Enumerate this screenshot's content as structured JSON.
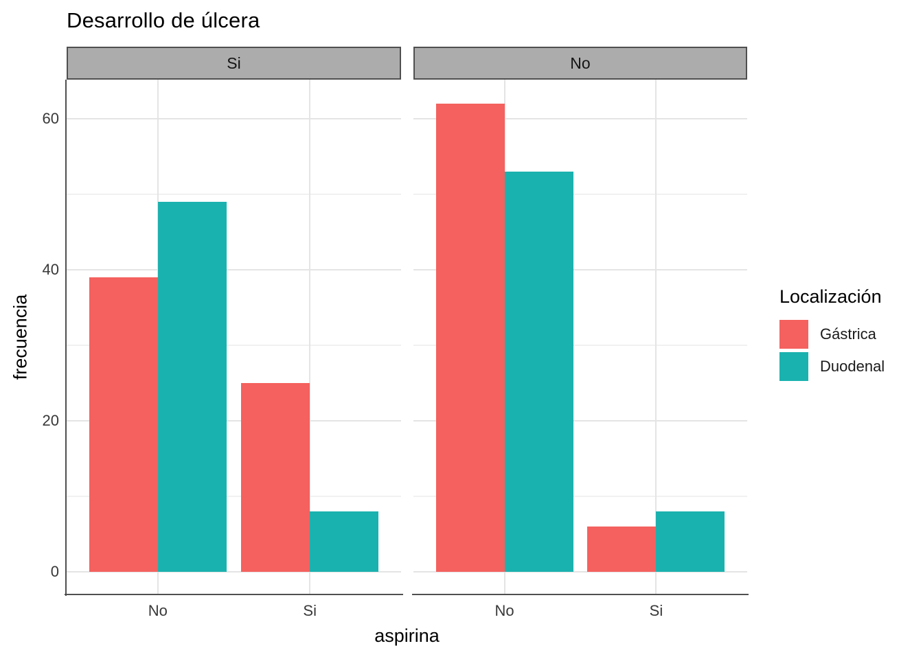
{
  "chart_data": {
    "type": "bar",
    "title": "Desarrollo de úlcera",
    "xlabel": "aspirina",
    "ylabel": "frecuencia",
    "facet_labels": [
      "Si",
      "No"
    ],
    "categories": [
      "No",
      "Si"
    ],
    "y_ticks": [
      0,
      20,
      40,
      60
    ],
    "y_minor_ticks": [
      10,
      30,
      50
    ],
    "ylim": [
      0,
      65
    ],
    "grid": "major and minor horizontal, major vertical at group centers",
    "legend_position": "right",
    "legend": {
      "title": "Localización",
      "entries": [
        {
          "label": "Gástrica",
          "color": "#F4615E"
        },
        {
          "label": "Duodenal",
          "color": "#1AB2AF"
        }
      ]
    },
    "facets": [
      {
        "label": "Si",
        "series": [
          {
            "name": "Gástrica",
            "values": [
              39,
              25
            ]
          },
          {
            "name": "Duodenal",
            "values": [
              49,
              8
            ]
          }
        ]
      },
      {
        "label": "No",
        "series": [
          {
            "name": "Gástrica",
            "values": [
              62,
              6
            ]
          },
          {
            "name": "Duodenal",
            "values": [
              53,
              8
            ]
          }
        ]
      }
    ],
    "colors": {
      "strip_background": "#ACACAC",
      "strip_border": "#4F4F4F",
      "axis_line": "#4F4F4F",
      "gridline_major": "#E4E4E4",
      "gridline_minor": "#F1F1F1"
    }
  }
}
